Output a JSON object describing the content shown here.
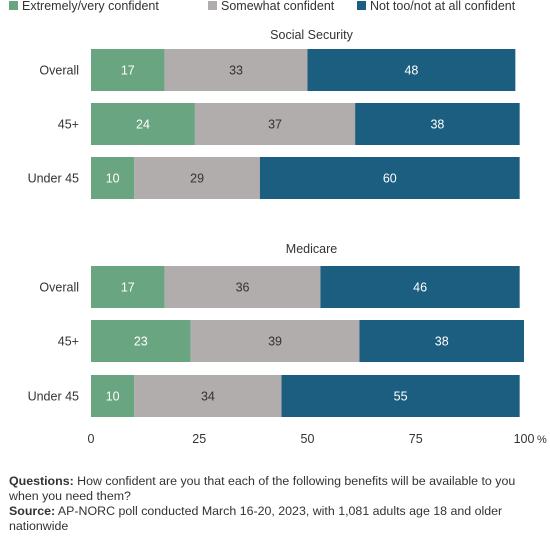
{
  "chart_data": {
    "type": "bar",
    "orientation": "horizontal",
    "stacked": true,
    "legend": {
      "position": "top",
      "entries": [
        {
          "label": "Extremely/very confident",
          "color": "#6aa581"
        },
        {
          "label": "Somewhat confident",
          "color": "#b1adac"
        },
        {
          "label": "Not too/not at all confident",
          "color": "#1b5e7f"
        }
      ]
    },
    "xlim": [
      0,
      100
    ],
    "x_ticks": [
      "0",
      "25",
      "50",
      "75",
      "100"
    ],
    "x_unit": "%",
    "grid": false,
    "panels": [
      {
        "title": "Social Security",
        "categories": [
          "Overall",
          "45+",
          "Under 45"
        ],
        "series": [
          {
            "name": "Extremely/very confident",
            "values": [
              17,
              24,
              10
            ]
          },
          {
            "name": "Somewhat confident",
            "values": [
              33,
              37,
              29
            ]
          },
          {
            "name": "Not too/not at all confident",
            "values": [
              48,
              38,
              60
            ]
          }
        ]
      },
      {
        "title": "Medicare",
        "categories": [
          "Overall",
          "45+",
          "Under 45"
        ],
        "series": [
          {
            "name": "Extremely/very confident",
            "values": [
              17,
              23,
              10
            ]
          },
          {
            "name": "Somewhat confident",
            "values": [
              36,
              39,
              34
            ]
          },
          {
            "name": "Not too/not at all confident",
            "values": [
              46,
              38,
              55
            ]
          }
        ]
      }
    ]
  },
  "notes": {
    "questions_label": "Questions:",
    "questions_text": " How confident are you that each of the following benefits will be available to you when you need them?",
    "source_label": "Source:",
    "source_text": " AP-NORC poll conducted March 16-20, 2023, with 1,081 adults age 18 and older nationwide"
  }
}
